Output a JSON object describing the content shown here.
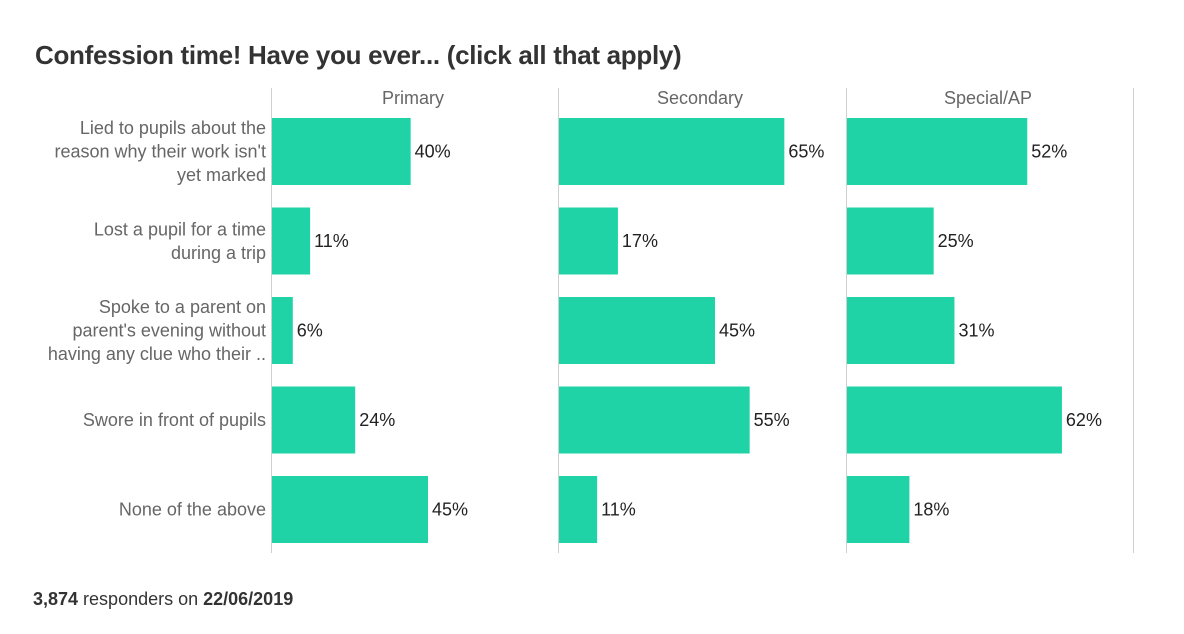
{
  "chart_data": {
    "type": "bar",
    "orientation": "horizontal",
    "title": "Confession time! Have you ever... (click all that apply)",
    "categories": [
      [
        "Lied to pupils about the",
        "reason why their work isn't",
        "yet marked"
      ],
      [
        "Lost a pupil for a time",
        "during a trip"
      ],
      [
        "Spoke to a parent on",
        "parent's evening without",
        "having any clue who their .."
      ],
      [
        "Swore in front of pupils"
      ],
      [
        "None of the above"
      ]
    ],
    "series": [
      {
        "name": "Primary",
        "values": [
          40,
          11,
          6,
          24,
          45
        ]
      },
      {
        "name": "Secondary",
        "values": [
          65,
          17,
          45,
          55,
          11
        ]
      },
      {
        "name": "Special/AP",
        "values": [
          52,
          25,
          31,
          62,
          18
        ]
      }
    ],
    "value_suffix": "%",
    "xlim": [
      0,
      82.5
    ],
    "grid": false,
    "bar_color": "#1fd3a7"
  },
  "footer": {
    "count": "3,874",
    "middle": " responders on ",
    "date": "22/06/2019"
  }
}
